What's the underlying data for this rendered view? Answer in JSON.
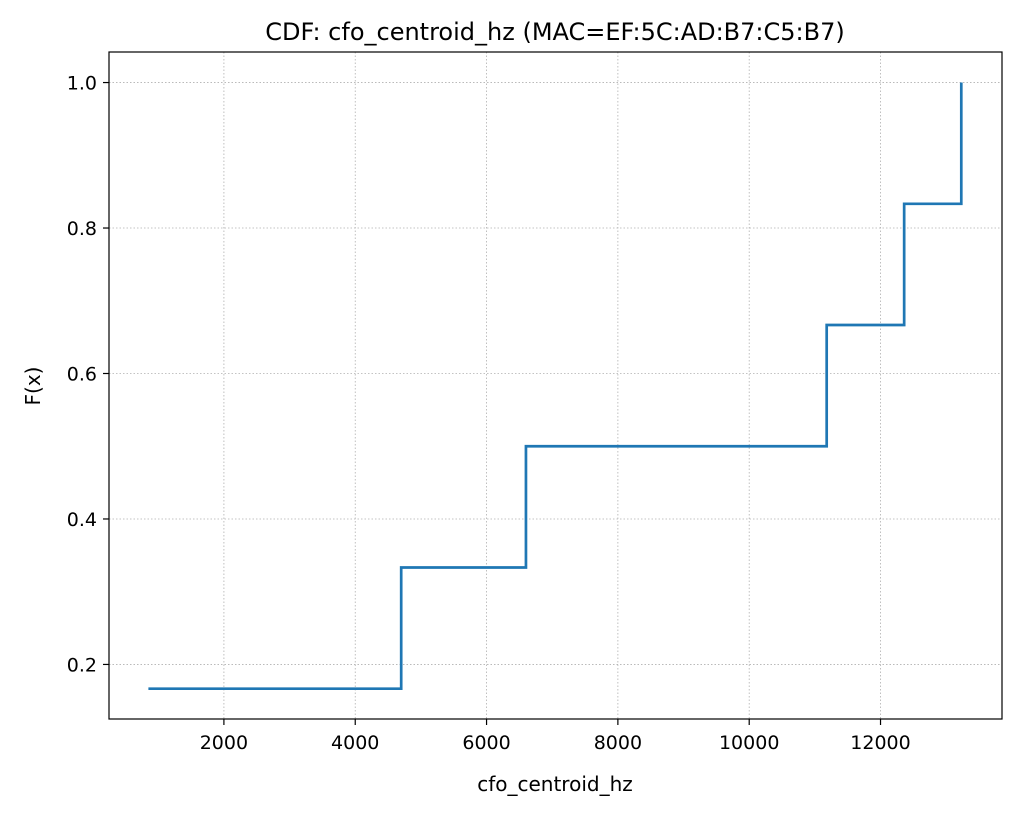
{
  "chart_data": {
    "type": "line",
    "title": "CDF: cfo_centroid_hz (MAC=EF:5C:AD:B7:C5:B7)",
    "xlabel": "cfo_centroid_hz",
    "ylabel": "F(x)",
    "xlim": [
      250,
      13850
    ],
    "ylim": [
      0.125,
      1.042
    ],
    "xticks": [
      2000,
      4000,
      6000,
      8000,
      10000,
      12000
    ],
    "xtick_labels": [
      "2000",
      "4000",
      "6000",
      "8000",
      "10000",
      "12000"
    ],
    "yticks": [
      0.2,
      0.4,
      0.6,
      0.8,
      1.0
    ],
    "ytick_labels": [
      "0.2",
      "0.4",
      "0.6",
      "0.8",
      "1.0"
    ],
    "grid": true,
    "grid_style": "dotted",
    "line_color": "#1f77b4",
    "step_where": "post",
    "series": [
      {
        "x": [
          850,
          4700,
          6600,
          11180,
          12360,
          13230
        ],
        "y": [
          0.1667,
          0.3333,
          0.5,
          0.6667,
          0.8333,
          1.0
        ]
      }
    ]
  }
}
